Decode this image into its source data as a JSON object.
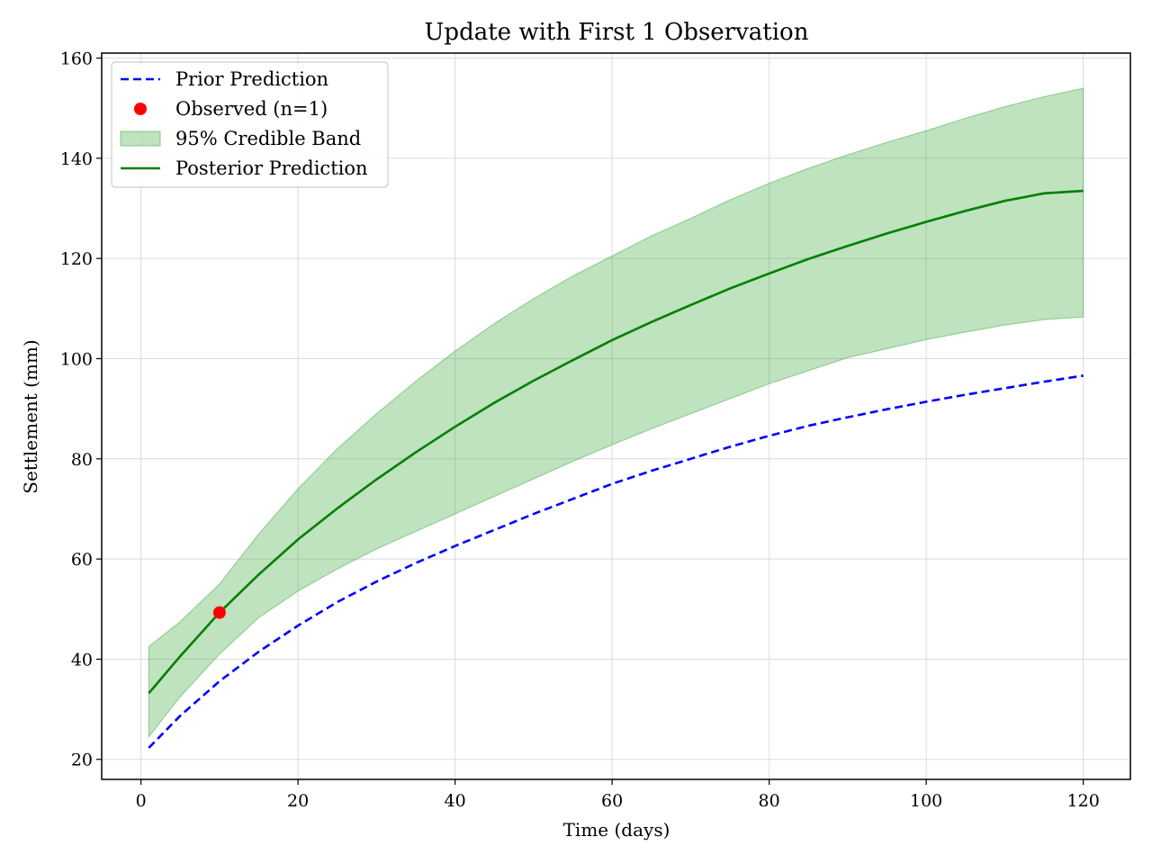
{
  "chart_data": {
    "type": "line",
    "title": "Update with First 1 Observation",
    "xlabel": "Time (days)",
    "ylabel": "Settlement (mm)",
    "xlim": [
      -5,
      126
    ],
    "ylim": [
      16,
      161
    ],
    "xticks": [
      0,
      20,
      40,
      60,
      80,
      100,
      120
    ],
    "yticks": [
      20,
      40,
      60,
      80,
      100,
      120,
      140,
      160
    ],
    "grid": true,
    "legend_position": "top-left",
    "legend": [
      {
        "label": "Prior Prediction",
        "style": "dashed-line",
        "color": "#0000ff"
      },
      {
        "label": "Observed (n=1)",
        "style": "marker",
        "color": "#ff0000"
      },
      {
        "label": "95% Credible Band",
        "style": "patch",
        "color": "#2ca02c"
      },
      {
        "label": "Posterior Prediction",
        "style": "line",
        "color": "#008000"
      }
    ],
    "x": [
      1,
      5,
      10,
      15,
      20,
      25,
      30,
      35,
      40,
      45,
      50,
      55,
      60,
      65,
      70,
      75,
      80,
      85,
      90,
      95,
      100,
      105,
      110,
      115,
      120
    ],
    "series": [
      {
        "name": "Prior Prediction",
        "color": "#0000ff",
        "dash": true,
        "values": [
          22.3,
          28.7,
          35.6,
          41.5,
          46.7,
          51.4,
          55.5,
          59.2,
          62.6,
          65.8,
          69.0,
          72.0,
          75.0,
          77.6,
          80.0,
          82.4,
          84.6,
          86.6,
          88.3,
          89.9,
          91.4,
          92.8,
          94.1,
          95.4,
          96.6
        ]
      },
      {
        "name": "Posterior Prediction",
        "color": "#008000",
        "dash": false,
        "values": [
          33.2,
          40.6,
          49.3,
          56.9,
          63.9,
          70.1,
          75.9,
          81.3,
          86.4,
          91.2,
          95.6,
          99.7,
          103.7,
          107.3,
          110.7,
          114.0,
          117.0,
          119.9,
          122.5,
          125.0,
          127.3,
          129.5,
          131.5,
          133.0,
          133.5
        ]
      },
      {
        "name": "95% Credible Band",
        "color": "#2ca02c",
        "band": true,
        "lower": [
          24.5,
          32.5,
          41.0,
          48.3,
          53.6,
          58.0,
          62.0,
          65.5,
          69.0,
          72.5,
          76.0,
          79.5,
          82.8,
          86.0,
          89.0,
          92.0,
          95.0,
          97.6,
          100.2,
          102.0,
          103.8,
          105.3,
          106.7,
          107.8,
          108.3
        ],
        "upper": [
          42.5,
          47.5,
          55.0,
          65.0,
          74.0,
          82.0,
          89.0,
          95.5,
          101.5,
          107.0,
          112.0,
          116.5,
          120.5,
          124.5,
          128.0,
          131.7,
          135.0,
          138.0,
          140.7,
          143.2,
          145.5,
          148.0,
          150.3,
          152.3,
          154.0
        ]
      }
    ],
    "observations": [
      {
        "x": 10,
        "y": 49.3
      }
    ]
  }
}
